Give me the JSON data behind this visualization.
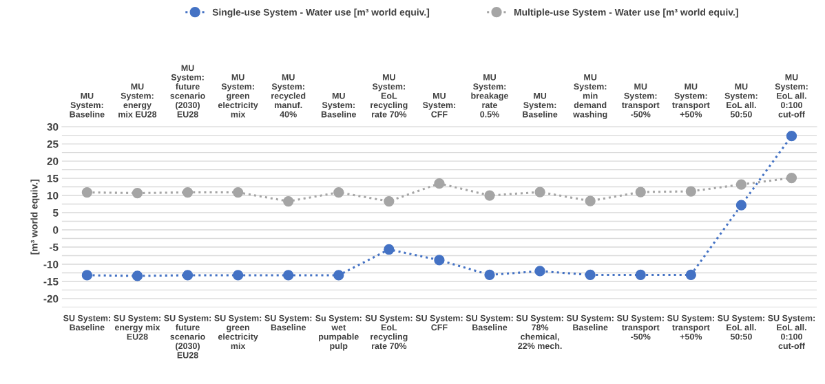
{
  "chart_data": {
    "type": "line",
    "ylabel": "[m³ world equiv.]",
    "categories": [
      "SU System: Baseline",
      "SU System: energy mix EU28",
      "SU System: future scenario (2030) EU28",
      "SU System: green electricity mix",
      "SU System: Baseline",
      "Su System: wet pumpable pulp",
      "SU System: EoL recycling rate 70%",
      "SU System: CFF",
      "SU System: Baseline",
      "SU System: 78% chemical, 22% mech.",
      "SU System: Baseline",
      "SU System: transport -50%",
      "SU System: transport +50%",
      "SU System: EoL all. 50:50",
      "SU System: EoL all. 0:100 cut-off"
    ],
    "annotations": [
      "MU System: Baseline",
      "MU System: energy mix EU28",
      "MU System: future scenario (2030) EU28",
      "MU System: green electricity mix",
      "MU System: recycled manuf. 40%",
      "MU System: Baseline",
      "MU System: EoL recycling rate 70%",
      "MU System: CFF",
      "MU System: breakage rate 0.5%",
      "MU System: Baseline",
      "MU System: min demand washing",
      "MU System: transport -50%",
      "MU System: transport +50%",
      "MU System: EoL all. 50:50",
      "MU System: EoL all. 0:100 cut-off"
    ],
    "series": [
      {
        "name": "Single-use System - Water use [m³ world equiv.]",
        "color": "#4472c4",
        "values": [
          -13.2,
          -13.4,
          -13.2,
          -13.2,
          -13.2,
          -13.2,
          -5.7,
          -8.8,
          -13.1,
          -12.0,
          -13.1,
          -13.1,
          -13.1,
          7.2,
          27.3
        ]
      },
      {
        "name": "Multiple-use System - Water use [m³ world equiv.]",
        "color": "#a5a5a5",
        "values": [
          10.9,
          10.7,
          10.9,
          10.9,
          8.3,
          10.9,
          8.3,
          13.5,
          10.0,
          11.0,
          8.4,
          11.0,
          11.2,
          13.2,
          15.1
        ]
      }
    ],
    "ylim": [
      -22.5,
      30
    ],
    "yticks": [
      {
        "value": -22.5,
        "label": null
      },
      -20,
      {
        "value": -17.5,
        "label": null
      },
      -15,
      {
        "value": -12.5,
        "label": null
      },
      -10,
      {
        "value": -7.5,
        "label": null
      },
      -5,
      {
        "value": -2.5,
        "label": null
      },
      0,
      {
        "value": 2.5,
        "label": null
      },
      5,
      {
        "value": 7.5,
        "label": null
      },
      10,
      {
        "value": 12.5,
        "label": null
      },
      15,
      {
        "value": 17.5,
        "label": null
      },
      20,
      {
        "value": 22.5,
        "label": null
      },
      25,
      {
        "value": 27.5,
        "label": null
      },
      30
    ],
    "grid": "y",
    "legend": "top",
    "marker": "circle",
    "line_style": "dotted"
  }
}
